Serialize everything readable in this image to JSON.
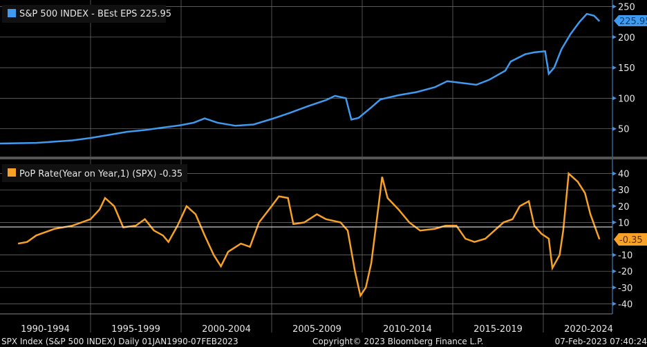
{
  "footer": {
    "left": "SPX Index (S&P 500 INDEX)  Daily 01JAN1990-07FEB2023",
    "center": "Copyright© 2023 Bloomberg Finance L.P.",
    "right": "07-Feb-2023 07:40:24"
  },
  "colors": {
    "eps": "#3e9bf0",
    "yoy": "#f7a226"
  },
  "chart_data": [
    {
      "type": "line",
      "title": "S&P 500 INDEX - BEst EPS 225.95",
      "last_value_label": "225.95",
      "ylim": [
        0,
        260
      ],
      "yticks": [
        50,
        100,
        150,
        200,
        250
      ],
      "ytick_labels": [
        "50",
        "100",
        "150",
        "200",
        "250"
      ],
      "x": [
        1990,
        1992,
        1994,
        1995,
        1996,
        1997,
        1998,
        1999,
        2000,
        2000.7,
        2001.3,
        2002,
        2003,
        2004,
        2005,
        2006,
        2007,
        2008,
        2008.5,
        2009.1,
        2009.4,
        2009.8,
        2010.5,
        2011,
        2012,
        2013,
        2014,
        2014.7,
        2015.5,
        2016.3,
        2017,
        2017.9,
        2018.2,
        2019,
        2019.5,
        2020.1,
        2020.3,
        2020.6,
        2021,
        2021.5,
        2022,
        2022.4,
        2022.8,
        2023.1
      ],
      "y": [
        26,
        27,
        31,
        35,
        40,
        45,
        48,
        52,
        56,
        60,
        67,
        60,
        55,
        57,
        66,
        76,
        87,
        97,
        104,
        100,
        65,
        68,
        85,
        98,
        105,
        110,
        118,
        128,
        125,
        122,
        130,
        145,
        160,
        172,
        175,
        177,
        140,
        150,
        180,
        205,
        225,
        238,
        235,
        225.95
      ]
    },
    {
      "type": "line",
      "title": "PoP Rate(Year on Year,1) (SPX) -0.35",
      "last_value_label": "-0.35",
      "ylim": [
        -44,
        47
      ],
      "yticks": [
        40,
        30,
        20,
        10,
        -10,
        -20,
        -30,
        -40
      ],
      "ytick_labels": [
        "40",
        "30",
        "20",
        "10",
        "-10",
        "-20",
        "-30",
        "-40"
      ],
      "x": [
        1991,
        1991.5,
        1992,
        1993,
        1994,
        1995,
        1995.5,
        1995.8,
        1996.3,
        1996.8,
        1997.5,
        1998,
        1998.5,
        1999,
        1999.3,
        1999.8,
        2000.3,
        2000.8,
        2001.3,
        2001.8,
        2002.2,
        2002.6,
        2003.3,
        2003.8,
        2004.3,
        2005,
        2005.4,
        2005.9,
        2006.2,
        2006.8,
        2007.5,
        2008,
        2008.8,
        2009.2,
        2009.6,
        2009.9,
        2010.2,
        2010.5,
        2010.9,
        2011.1,
        2011.4,
        2012,
        2012.6,
        2013.2,
        2014,
        2014.6,
        2015.2,
        2015.7,
        2016.2,
        2016.8,
        2017.3,
        2017.8,
        2018.3,
        2018.7,
        2019.2,
        2019.5,
        2019.9,
        2020.3,
        2020.5,
        2020.9,
        2021.1,
        2021.4,
        2021.9,
        2022.3,
        2022.6,
        2023.1
      ],
      "y": [
        -3,
        -2,
        2,
        6,
        8,
        12,
        18,
        25,
        20,
        7,
        8,
        12,
        5,
        2,
        -2,
        8,
        20,
        15,
        2,
        -10,
        -17,
        -8,
        -3,
        -5,
        10,
        20,
        26,
        25,
        9,
        10,
        15,
        12,
        10,
        5,
        -20,
        -35,
        -30,
        -15,
        20,
        38,
        25,
        18,
        10,
        5,
        6,
        8,
        8,
        0,
        -2,
        0,
        5,
        10,
        12,
        20,
        23,
        8,
        3,
        0,
        -18,
        -10,
        5,
        40,
        35,
        28,
        15,
        -0.35
      ]
    },
    {
      "type": "axis",
      "xticks": [
        "1990-1994",
        "1995-1999",
        "2000-2004",
        "2005-2009",
        "2010-2014",
        "2015-2019",
        "2020-2024"
      ],
      "xlim": [
        1990,
        2025
      ]
    }
  ]
}
